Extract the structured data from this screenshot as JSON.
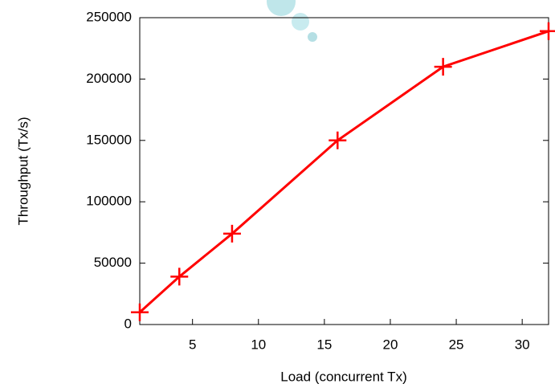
{
  "chart_data": {
    "type": "line",
    "x_label": "Load (concurrent Tx)",
    "y_label": "Throughput (Tx/s)",
    "x": [
      1,
      4,
      8,
      16,
      24,
      32
    ],
    "series": [
      {
        "color": "#ff0000",
        "values": [
          10000,
          39000,
          74000,
          150000,
          210000,
          239000
        ]
      }
    ],
    "xlim": [
      1,
      32
    ],
    "xticks": [
      5,
      10,
      15,
      20,
      25,
      30
    ],
    "ylim": [
      0,
      250000
    ],
    "yticks": [
      0,
      50000,
      100000,
      150000,
      200000,
      250000
    ]
  }
}
